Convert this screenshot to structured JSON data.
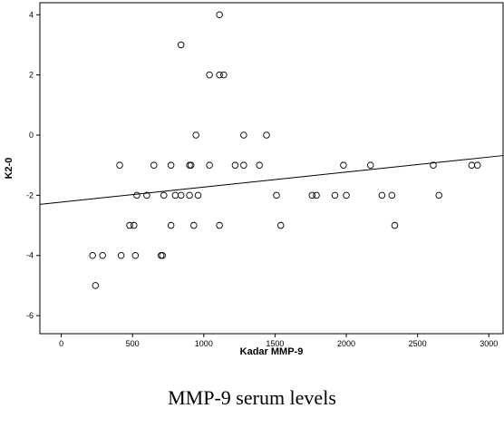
{
  "caption": "MMP-9 serum levels",
  "chart_data": {
    "type": "scatter",
    "xlabel": "Kadar MMP-9",
    "ylabel": "K2-0",
    "xlim": [
      -150,
      3100
    ],
    "ylim": [
      -6.6,
      4.4
    ],
    "x_ticks": [
      0,
      500,
      1000,
      1500,
      2000,
      2500,
      3000
    ],
    "y_ticks": [
      -6,
      -4,
      -2,
      0,
      2,
      4
    ],
    "grid": false,
    "fit_line": {
      "x": [
        -150,
        3100
      ],
      "y": [
        -2.3,
        -0.68
      ]
    },
    "points": [
      {
        "x": 220,
        "y": -4
      },
      {
        "x": 240,
        "y": -5
      },
      {
        "x": 290,
        "y": -4
      },
      {
        "x": 410,
        "y": -1
      },
      {
        "x": 420,
        "y": -4
      },
      {
        "x": 480,
        "y": -3
      },
      {
        "x": 510,
        "y": -3
      },
      {
        "x": 520,
        "y": -4
      },
      {
        "x": 530,
        "y": -2
      },
      {
        "x": 600,
        "y": -2
      },
      {
        "x": 650,
        "y": -1
      },
      {
        "x": 700,
        "y": -4
      },
      {
        "x": 710,
        "y": -4
      },
      {
        "x": 720,
        "y": -2
      },
      {
        "x": 770,
        "y": -1
      },
      {
        "x": 770,
        "y": -3
      },
      {
        "x": 800,
        "y": -2
      },
      {
        "x": 840,
        "y": 3
      },
      {
        "x": 840,
        "y": -2
      },
      {
        "x": 900,
        "y": -2
      },
      {
        "x": 900,
        "y": -1
      },
      {
        "x": 910,
        "y": -1
      },
      {
        "x": 930,
        "y": -3
      },
      {
        "x": 945,
        "y": 0
      },
      {
        "x": 960,
        "y": -2
      },
      {
        "x": 1040,
        "y": 2
      },
      {
        "x": 1040,
        "y": -1
      },
      {
        "x": 1110,
        "y": 4
      },
      {
        "x": 1110,
        "y": 2
      },
      {
        "x": 1110,
        "y": -3
      },
      {
        "x": 1140,
        "y": 2
      },
      {
        "x": 1220,
        "y": -1
      },
      {
        "x": 1280,
        "y": 0
      },
      {
        "x": 1280,
        "y": -1
      },
      {
        "x": 1390,
        "y": -1
      },
      {
        "x": 1440,
        "y": 0
      },
      {
        "x": 1510,
        "y": -2
      },
      {
        "x": 1540,
        "y": -3
      },
      {
        "x": 1760,
        "y": -2
      },
      {
        "x": 1790,
        "y": -2
      },
      {
        "x": 1920,
        "y": -2
      },
      {
        "x": 1980,
        "y": -1
      },
      {
        "x": 2000,
        "y": -2
      },
      {
        "x": 2170,
        "y": -1
      },
      {
        "x": 2250,
        "y": -2
      },
      {
        "x": 2320,
        "y": -2
      },
      {
        "x": 2340,
        "y": -3
      },
      {
        "x": 2610,
        "y": -1
      },
      {
        "x": 2650,
        "y": -2
      },
      {
        "x": 2880,
        "y": -1
      },
      {
        "x": 2920,
        "y": -1
      }
    ]
  }
}
